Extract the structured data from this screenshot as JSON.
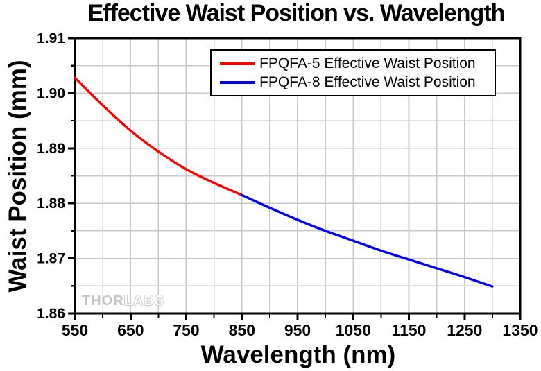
{
  "title": "Effective Waist Position vs. Wavelength",
  "watermark": {
    "part1": "THOR",
    "part2": "LABS"
  },
  "colors": {
    "series1": "#ff0000",
    "series2": "#0000ff",
    "grid": "#c8c8c8",
    "axis": "#000000"
  },
  "chart_data": {
    "type": "line",
    "title": "Effective Waist Position vs. Wavelength",
    "xlabel": "Wavelength (nm)",
    "ylabel": "Waist Position (mm)",
    "xlim": [
      550,
      1350
    ],
    "ylim": [
      1.86,
      1.91
    ],
    "x_major_step": 100,
    "x_minor_step": 50,
    "y_major_step": 0.01,
    "y_minor_step": 0.005,
    "grid": "minor gridlines on, both axes",
    "legend_position": "top center, boxed",
    "x_tick_labels": [
      "550",
      "650",
      "750",
      "850",
      "950",
      "1050",
      "1150",
      "1250",
      "1350"
    ],
    "y_tick_labels": [
      "1.86",
      "1.87",
      "1.88",
      "1.89",
      "1.90",
      "1.91"
    ],
    "x_tick_values": [
      550,
      650,
      750,
      850,
      950,
      1050,
      1150,
      1250,
      1350
    ],
    "y_tick_values": [
      1.86,
      1.87,
      1.88,
      1.89,
      1.9,
      1.91
    ],
    "series": [
      {
        "name": "FPQFA-5 Effective Waist Position",
        "color": "#ff0000",
        "x": [
          550,
          600,
          650,
          700,
          750,
          800,
          850
        ],
        "y": [
          1.9028,
          1.8978,
          1.8932,
          1.8894,
          1.8862,
          1.8837,
          1.8815
        ]
      },
      {
        "name": "FPQFA-8 Effective Waist Position",
        "color": "#0000ff",
        "x": [
          850,
          900,
          950,
          1000,
          1050,
          1100,
          1150,
          1200,
          1250,
          1300
        ],
        "y": [
          1.8815,
          1.8792,
          1.877,
          1.875,
          1.8732,
          1.8714,
          1.8698,
          1.8682,
          1.8666,
          1.8649
        ]
      }
    ]
  }
}
